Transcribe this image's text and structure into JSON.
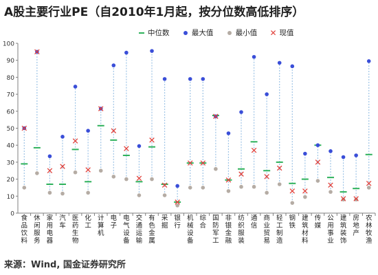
{
  "title": "A股主要行业PE（自2010年1月起，按分位数高低排序）",
  "source": "来源：Wind, 国金证券研究所",
  "legend": {
    "median": "中位数",
    "max": "最大值",
    "min": "最小值",
    "current": "现值"
  },
  "colors": {
    "median": "#2db15a",
    "max": "#3a4ed8",
    "min": "#b5aca4",
    "current": "#e0403a",
    "range_line": "#9dc3e6",
    "axis": "#7f7f7f"
  },
  "chart_data": {
    "type": "scatter",
    "ylim": [
      0,
      100
    ],
    "yticks": [
      0,
      10,
      20,
      30,
      40,
      50,
      60,
      70,
      80,
      90,
      100
    ],
    "grid": false,
    "legend_position": "top",
    "categories": [
      "食品饮料",
      "休闲服务",
      "家用电器",
      "汽车",
      "医药生物",
      "化工",
      "计算机",
      "电子",
      "电气设备",
      "交通运输",
      "有色金属",
      "采掘",
      "银行",
      "机械设备",
      "综合",
      "国防军工",
      "非银金融",
      "纺织服装",
      "通信",
      "商业贸易",
      "轻工制造",
      "钢铁",
      "建筑材料",
      "传媒",
      "公用事业",
      "建筑装饰",
      "房地产",
      "农林牧渔"
    ],
    "series": [
      {
        "name": "中位数",
        "values": [
          29,
          38.5,
          17,
          17,
          37.5,
          18.5,
          51.5,
          43,
          34,
          18.5,
          39,
          17,
          6.5,
          29.5,
          29.5,
          57.5,
          19.5,
          26,
          42,
          25,
          30,
          17.5,
          20,
          40,
          21,
          12.5,
          14.5,
          34.5
        ]
      },
      {
        "name": "最大值",
        "values": [
          50,
          95,
          33.5,
          45,
          74.5,
          48.5,
          61.5,
          87,
          94.5,
          39.5,
          95.5,
          79,
          16,
          79,
          79,
          57,
          47,
          59.5,
          92,
          70,
          88.5,
          86.5,
          35,
          40,
          36.5,
          33,
          34,
          89.5
        ]
      },
      {
        "name": "最小值",
        "values": [
          15,
          23.5,
          12,
          11.5,
          24,
          12,
          25,
          21.5,
          20,
          10.5,
          20,
          10.5,
          4.5,
          15,
          15,
          26,
          13,
          15.5,
          15.5,
          12,
          17,
          6,
          9.5,
          19,
          12.5,
          8,
          8,
          15
        ]
      },
      {
        "name": "现值",
        "values": [
          50,
          95,
          25,
          27.5,
          42.5,
          25.5,
          61.5,
          48.5,
          38,
          20.5,
          43,
          16.5,
          6.5,
          29.5,
          29.5,
          57,
          19.5,
          23,
          37,
          21.5,
          26.5,
          13,
          13,
          30,
          16.5,
          8.5,
          8.5,
          17.5
        ]
      }
    ]
  }
}
